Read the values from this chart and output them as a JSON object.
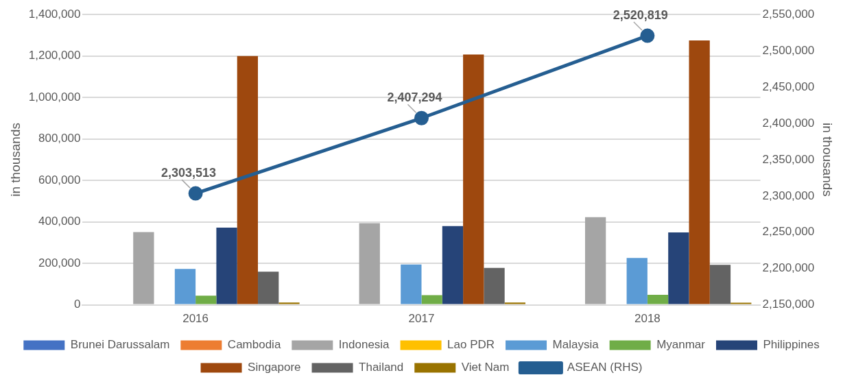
{
  "chart_data": {
    "type": "bar",
    "ylabel": "in thousands",
    "y2label": "in thousands",
    "categories": [
      "2016",
      "2017",
      "2018"
    ],
    "series": [
      {
        "name": "Brunei Darussalam",
        "color": "#4472c4",
        "values": [
          0,
          0,
          0
        ]
      },
      {
        "name": "Cambodia",
        "color": "#ed7d31",
        "values": [
          0,
          0,
          0
        ]
      },
      {
        "name": "Indonesia",
        "color": "#a5a5a5",
        "values": [
          351000,
          394000,
          423000
        ]
      },
      {
        "name": "Lao PDR",
        "color": "#ffc000",
        "values": [
          0,
          0,
          0
        ]
      },
      {
        "name": "Malaysia",
        "color": "#5b9bd5",
        "values": [
          173000,
          195000,
          226000
        ]
      },
      {
        "name": "Myanmar",
        "color": "#70ad47",
        "values": [
          44000,
          47000,
          48000
        ]
      },
      {
        "name": "Philippines",
        "color": "#264478",
        "values": [
          372000,
          380000,
          349000
        ]
      },
      {
        "name": "Singapore",
        "color": "#9e480e",
        "values": [
          1200000,
          1207000,
          1275000
        ]
      },
      {
        "name": "Thailand",
        "color": "#636363",
        "values": [
          160000,
          178000,
          193000
        ]
      },
      {
        "name": "Viet Nam",
        "color": "#997300",
        "values": [
          11000,
          11000,
          10000
        ]
      },
      {
        "name": "ASEAN (RHS)",
        "type": "line",
        "axis": "y2",
        "color": "#255e91",
        "values": [
          2303513,
          2407294,
          2520819
        ],
        "value_labels": [
          "2,303,513",
          "2,407,294",
          "2,520,819"
        ]
      }
    ],
    "ylim": [
      0,
      1400000
    ],
    "yticks": [
      0,
      {
        "value": 200000,
        "label": "200,000"
      },
      {
        "value": 400000,
        "label": "400,000"
      },
      {
        "value": 600000,
        "label": "600,000"
      },
      {
        "value": 800000,
        "label": "800,000"
      },
      {
        "value": 1000000,
        "label": "1,000,000"
      },
      {
        "value": 1200000,
        "label": "1,200,000"
      },
      {
        "value": 1400000,
        "label": "1,400,000"
      }
    ],
    "y2lim": [
      2150000,
      2550000
    ],
    "y2ticks": [
      {
        "value": 2150000,
        "label": "2,150,000"
      },
      {
        "value": 2200000,
        "label": "2,200,000"
      },
      {
        "value": 2250000,
        "label": "2,250,000"
      },
      {
        "value": 2300000,
        "label": "2,300,000"
      },
      {
        "value": 2350000,
        "label": "2,350,000"
      },
      {
        "value": 2400000,
        "label": "2,400,000"
      },
      {
        "value": 2450000,
        "label": "2,450,000"
      },
      {
        "value": 2500000,
        "label": "2,500,000"
      },
      {
        "value": 2550000,
        "label": "2,550,000"
      }
    ],
    "grid": "y",
    "legend": "bottom",
    "marker": "circle"
  }
}
